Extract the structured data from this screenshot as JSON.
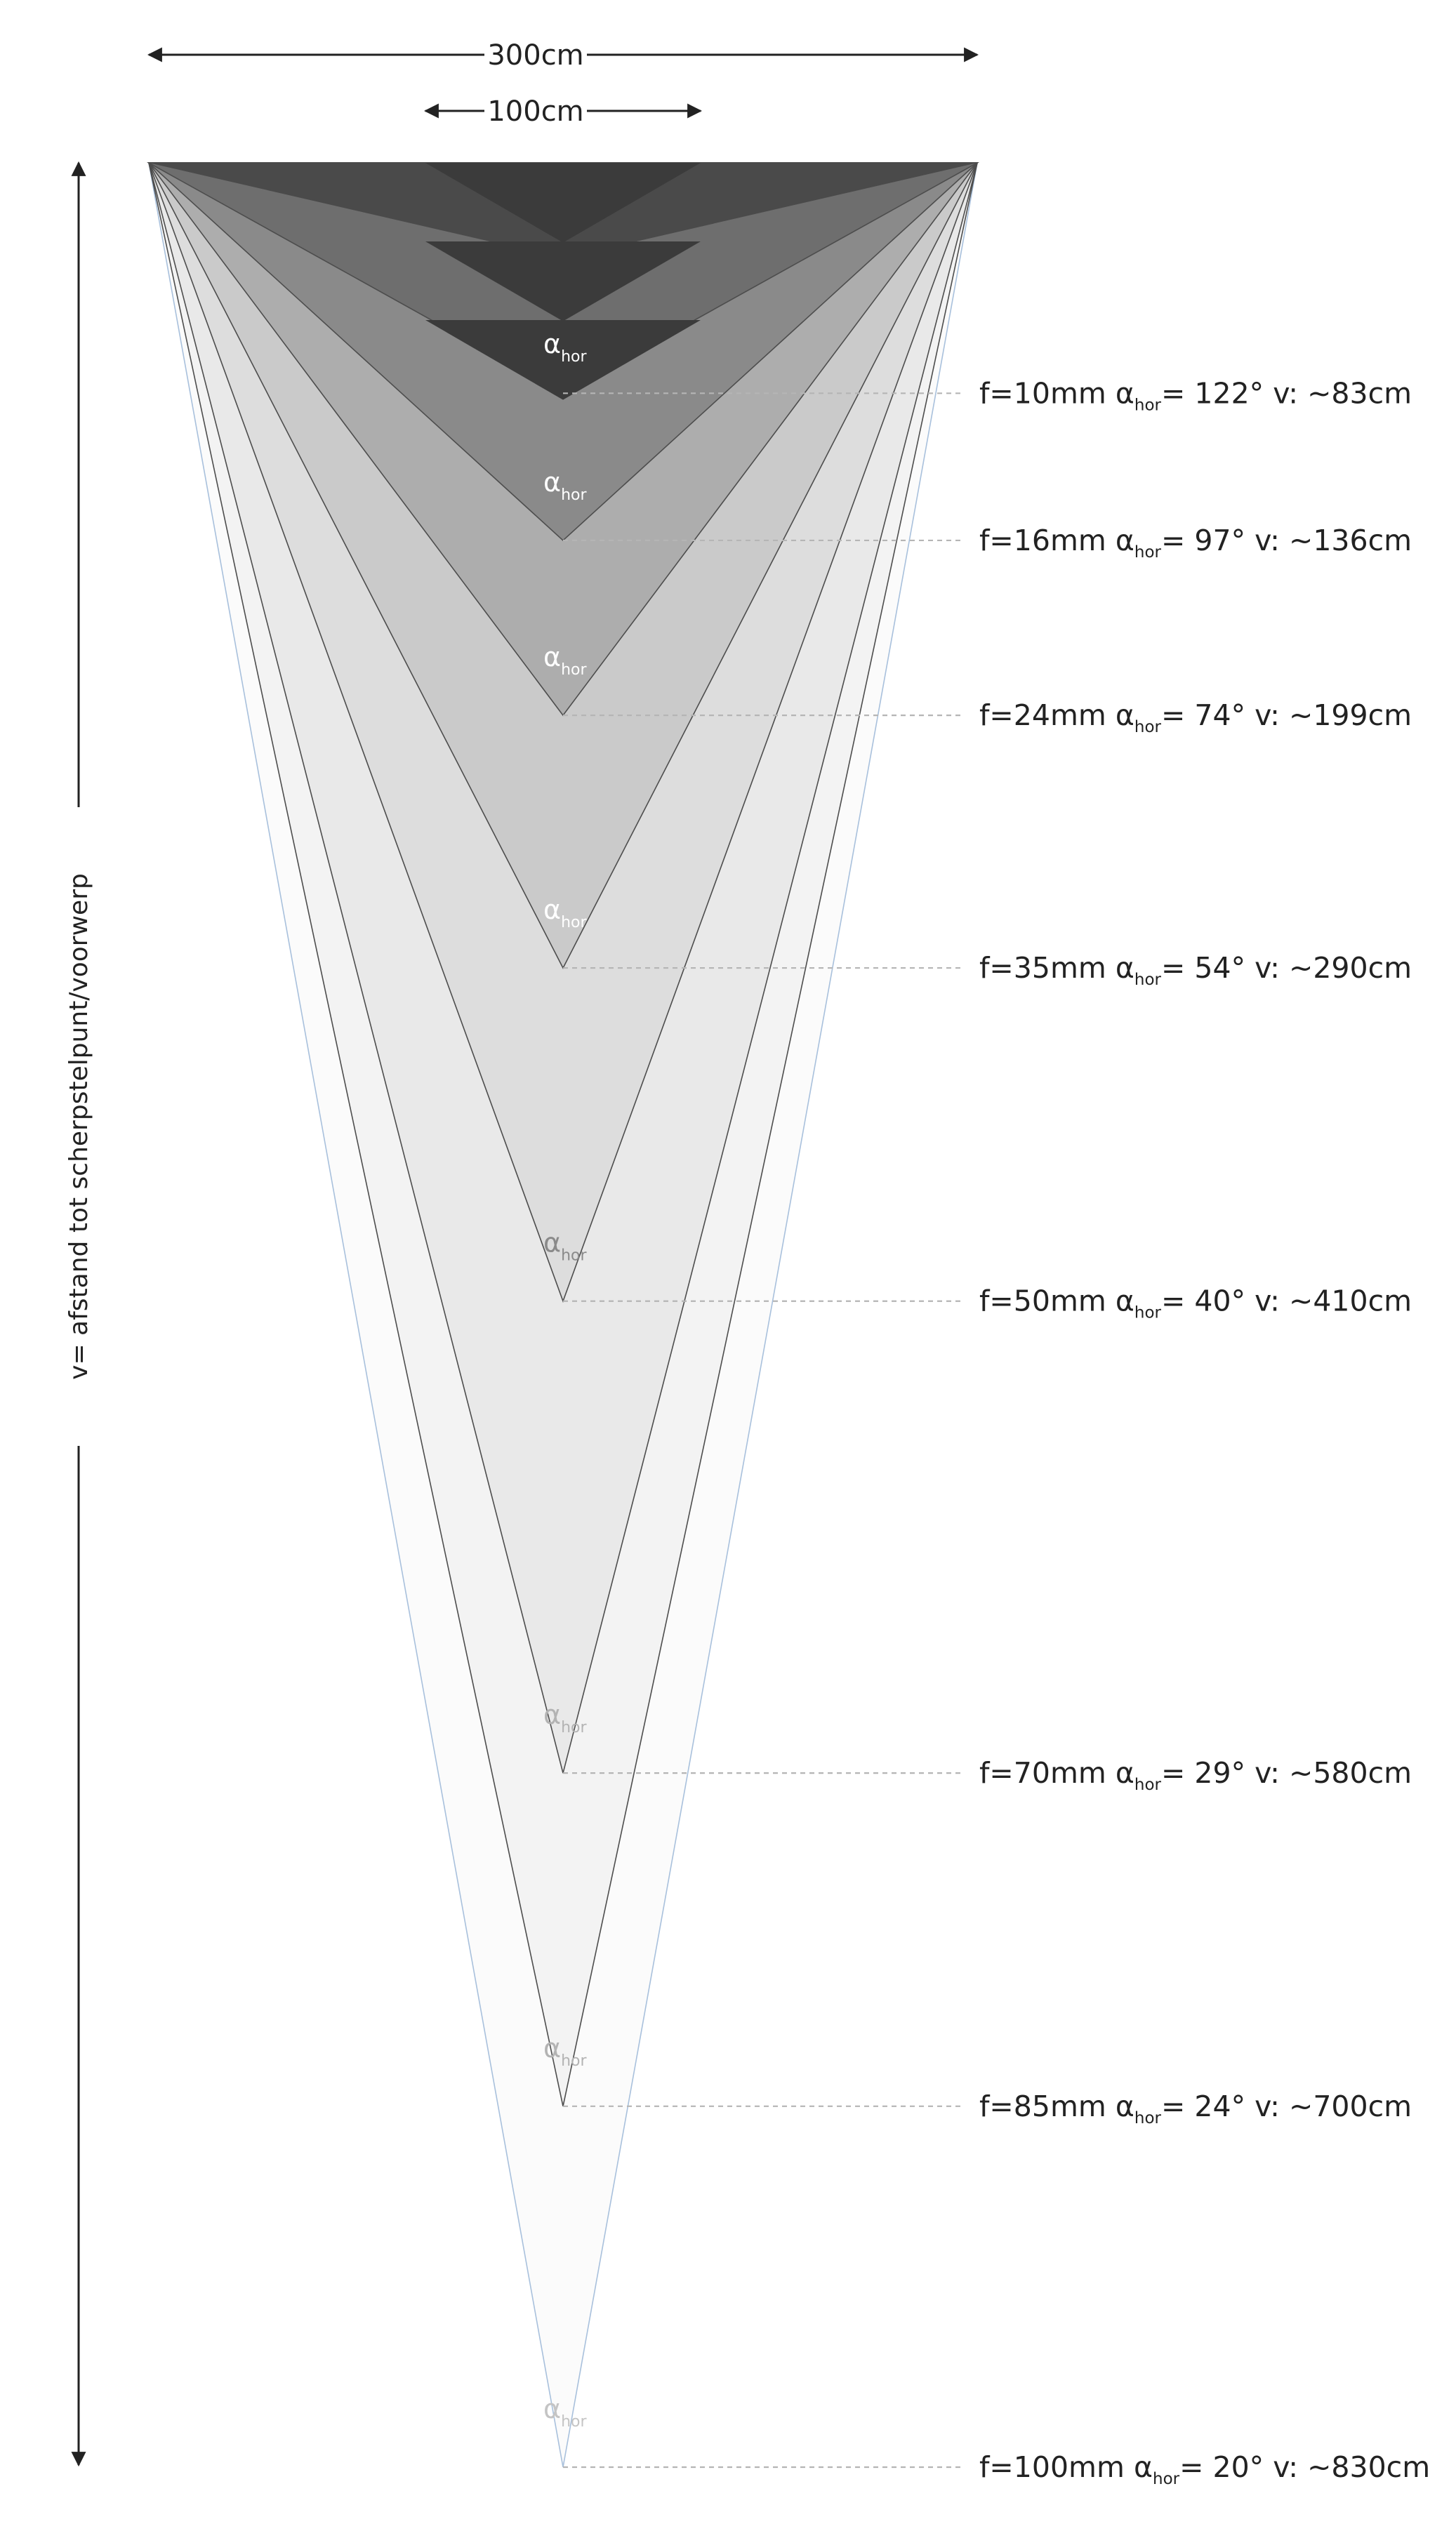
{
  "dimensions": {
    "width_outer": "300cm",
    "width_inner": "100cm"
  },
  "axis_label": "v= afstand tot scherpstelpunt/voorwerp",
  "alpha_symbol": "α",
  "alpha_subscript": "hor",
  "lenses": [
    {
      "f": "f=10mm",
      "angle": "= 122°",
      "v": "v: ~83cm",
      "distance_cm": 83,
      "fill": "#6e6e6e",
      "alpha_color": "#ffffff"
    },
    {
      "f": "f=16mm",
      "angle": "= 97°",
      "v": "v: ~136cm",
      "distance_cm": 136,
      "fill": "#8a8a8a",
      "alpha_color": "#ffffff"
    },
    {
      "f": "f=24mm",
      "angle": "= 74°",
      "v": "v: ~199cm",
      "distance_cm": 199,
      "fill": "#adadad",
      "alpha_color": "#ffffff"
    },
    {
      "f": "f=35mm",
      "angle": "= 54°",
      "v": "v: ~290cm",
      "distance_cm": 290,
      "fill": "#cacaca",
      "alpha_color": "#ffffff"
    },
    {
      "f": "f=50mm",
      "angle": "= 40°",
      "v": "v: ~410cm",
      "distance_cm": 410,
      "fill": "#dddddd",
      "alpha_color": "#8a8a8a"
    },
    {
      "f": "f=70mm",
      "angle": "= 29°",
      "v": "v: ~580cm",
      "distance_cm": 580,
      "fill": "#e9e9e9",
      "alpha_color": "#b3b3b3"
    },
    {
      "f": "f=85mm",
      "angle": "= 24°",
      "v": "v: ~700cm",
      "distance_cm": 700,
      "fill": "#f3f3f3",
      "alpha_color": "#b3b3b3"
    },
    {
      "f": "f=100mm",
      "angle": "= 20°",
      "v": "v: ~830cm",
      "distance_cm": 830,
      "fill": "#fbfbfb",
      "alpha_color": "#c4c4c4",
      "outline_color": "#a8c0dc"
    }
  ],
  "colors": {
    "top_band": "#4a4a4a",
    "inner_triangles": "#3b3b3b",
    "outline": "#4d4d4d",
    "guide_line": "#b5b5b5",
    "text": "#222222"
  }
}
